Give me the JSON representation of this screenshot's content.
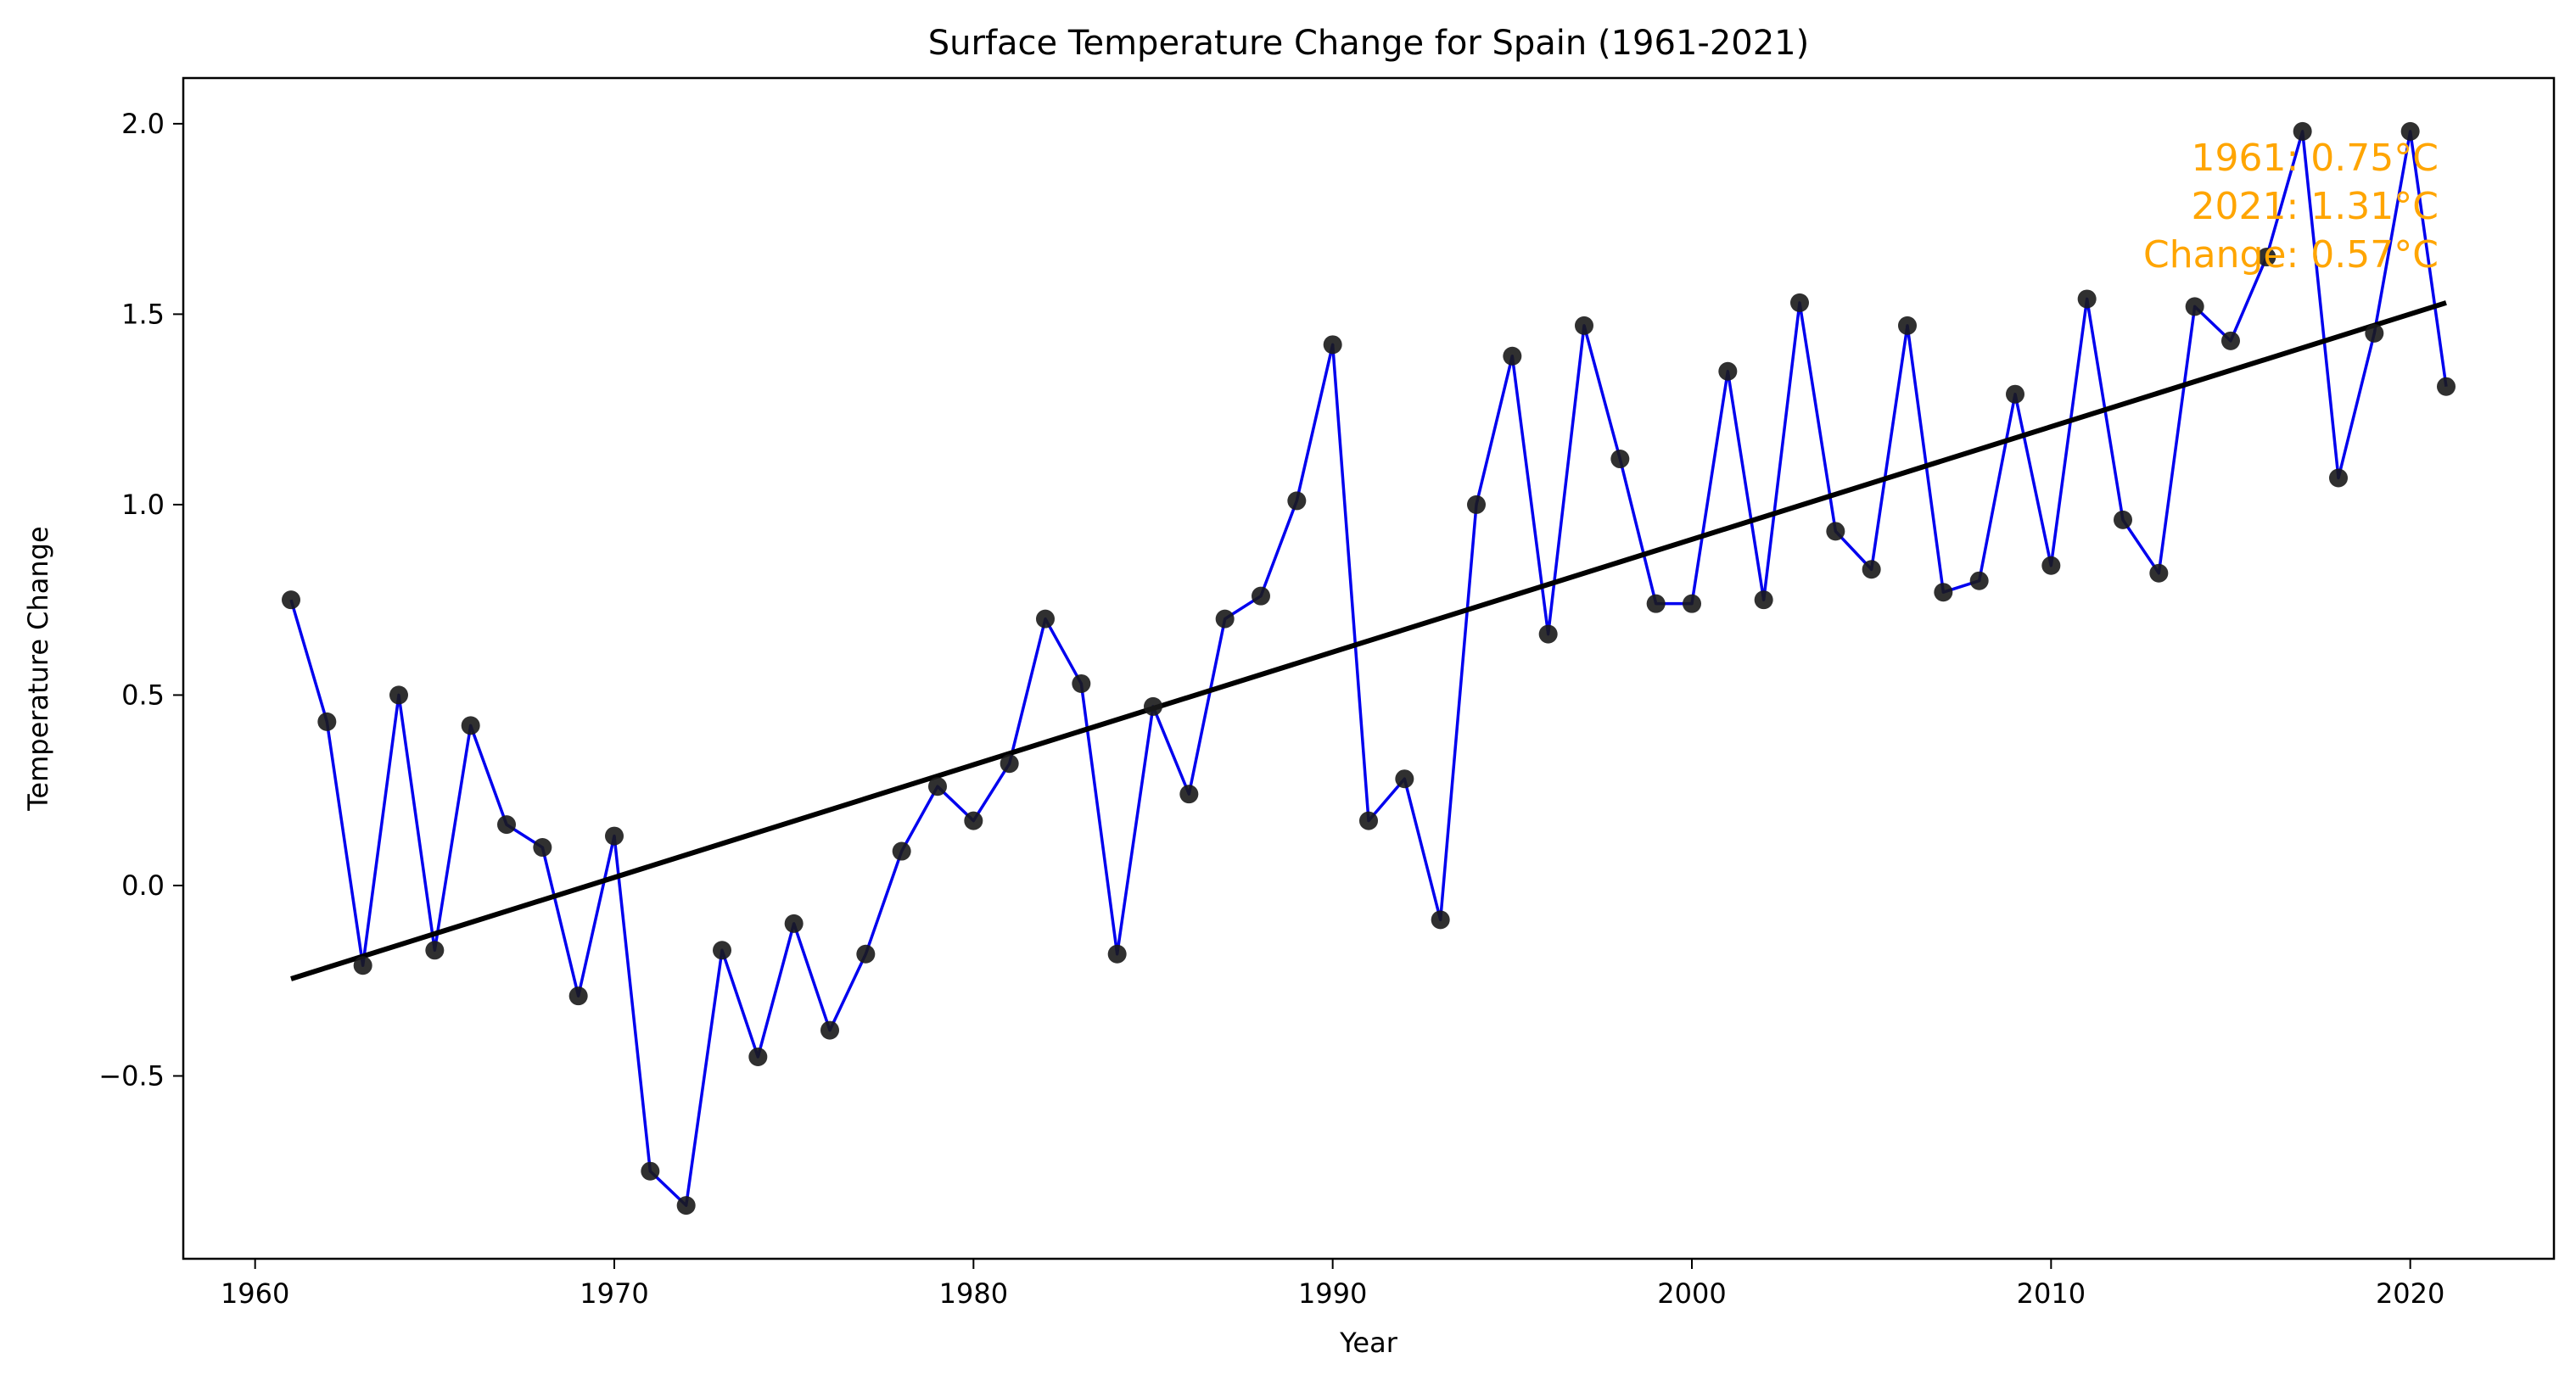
{
  "chart_data": {
    "type": "line",
    "title": "Surface Temperature Change for Spain (1961-2021)",
    "xlabel": "Year",
    "ylabel": "Temperature Change",
    "xlim": [
      1958,
      2024
    ],
    "ylim": [
      -0.98,
      2.12
    ],
    "xticks": [
      1960,
      1970,
      1980,
      1990,
      2000,
      2010,
      2020
    ],
    "yticks": [
      -0.5,
      0.0,
      0.5,
      1.0,
      1.5,
      2.0
    ],
    "xtick_labels": [
      "1960",
      "1970",
      "1980",
      "1990",
      "2000",
      "2010",
      "2020"
    ],
    "ytick_labels": [
      "−0.5",
      "0.0",
      "0.5",
      "1.0",
      "1.5",
      "2.0"
    ],
    "grid": false,
    "series": [
      {
        "color": "#0000ee",
        "marker_color": "#1a1a1a",
        "x": [
          1961,
          1962,
          1963,
          1964,
          1965,
          1966,
          1967,
          1968,
          1969,
          1970,
          1971,
          1972,
          1973,
          1974,
          1975,
          1976,
          1977,
          1978,
          1979,
          1980,
          1981,
          1982,
          1983,
          1984,
          1985,
          1986,
          1987,
          1988,
          1989,
          1990,
          1991,
          1992,
          1993,
          1994,
          1995,
          1996,
          1997,
          1998,
          1999,
          2000,
          2001,
          2002,
          2003,
          2004,
          2005,
          2006,
          2007,
          2008,
          2009,
          2010,
          2011,
          2012,
          2013,
          2014,
          2015,
          2016,
          2017,
          2018,
          2019,
          2020,
          2021
        ],
        "y": [
          0.75,
          0.43,
          -0.21,
          0.5,
          -0.17,
          0.42,
          0.16,
          0.1,
          -0.29,
          0.13,
          -0.75,
          -0.84,
          -0.17,
          -0.45,
          -0.1,
          -0.38,
          -0.18,
          0.09,
          0.26,
          0.17,
          0.32,
          0.7,
          0.53,
          -0.18,
          0.47,
          0.24,
          0.7,
          0.76,
          1.01,
          1.42,
          0.17,
          0.28,
          -0.09,
          1.0,
          1.39,
          0.66,
          1.47,
          1.12,
          0.74,
          0.74,
          1.35,
          0.75,
          1.53,
          0.93,
          0.83,
          1.47,
          0.77,
          0.8,
          1.29,
          0.84,
          1.54,
          0.96,
          0.82,
          1.52,
          1.43,
          1.65,
          1.98,
          1.07,
          1.45,
          1.98,
          1.31
        ]
      }
    ],
    "trendline": {
      "color": "#000000",
      "x": [
        1961,
        2021
      ],
      "y": [
        -0.245,
        1.53
      ]
    },
    "annotation": {
      "color": "#ffa500",
      "lines": [
        "1961: 0.75°C",
        "2021: 1.31°C",
        "Change: 0.57°C"
      ]
    }
  }
}
